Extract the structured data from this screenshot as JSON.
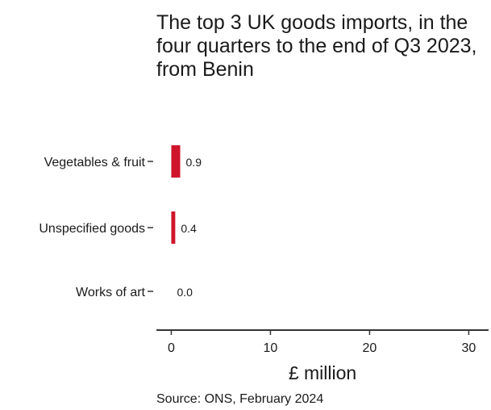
{
  "chart_data": {
    "type": "bar",
    "orientation": "horizontal",
    "title": "The top 3 UK goods imports, in the four quarters to the end of Q3 2023, from Benin",
    "categories": [
      "Vegetables & fruit",
      "Unspecified goods",
      "Works of art"
    ],
    "values": [
      0.9,
      0.4,
      0.0
    ],
    "value_labels": [
      "0.9",
      "0.4",
      "0.0"
    ],
    "xlabel": "£ million",
    "ylabel": "",
    "xlim": [
      -1.5,
      32
    ],
    "xticks": [
      0,
      10,
      20,
      30
    ],
    "xtick_labels": [
      "0",
      "10",
      "20",
      "30"
    ],
    "grid": false,
    "legend": "none",
    "bar_color": "#cf142b",
    "source": "Source: ONS, February 2024"
  }
}
